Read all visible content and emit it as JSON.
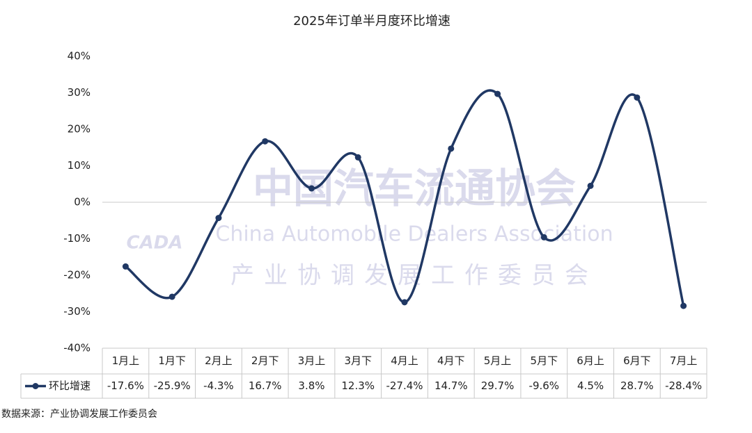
{
  "chart_data": {
    "type": "line",
    "title": "2025年订单半月度环比增速",
    "categories": [
      "1月上",
      "1月下",
      "2月上",
      "2月下",
      "3月上",
      "3月下",
      "4月上",
      "4月下",
      "5月上",
      "5月下",
      "6月上",
      "6月下",
      "7月上"
    ],
    "series": [
      {
        "name": "环比增速",
        "color": "#203864",
        "values": [
          -17.6,
          -25.9,
          -4.3,
          16.7,
          3.8,
          12.3,
          -27.4,
          14.7,
          29.7,
          -9.6,
          4.5,
          28.7,
          -28.4
        ],
        "value_labels": [
          "-17.6%",
          "-25.9%",
          "-4.3%",
          "16.7%",
          "3.8%",
          "12.3%",
          "-27.4%",
          "14.7%",
          "29.7%",
          "-9.6%",
          "4.5%",
          "28.7%",
          "-28.4%"
        ]
      }
    ],
    "ylim": [
      -40,
      40
    ],
    "yticks": [
      {
        "value": 40,
        "label": "40%"
      },
      {
        "value": 30,
        "label": "30%"
      },
      {
        "value": 20,
        "label": "20%"
      },
      {
        "value": 10,
        "label": "10%"
      },
      {
        "value": 0,
        "label": "0%"
      },
      {
        "value": -10,
        "label": "-10%"
      },
      {
        "value": -20,
        "label": "-20%"
      },
      {
        "value": -30,
        "label": "-30%"
      },
      {
        "value": -40,
        "label": "-40%"
      }
    ],
    "smooth": true,
    "watermark": {
      "logo": "CADA",
      "name": "中国汽车流通协会",
      "english": "China Automobile Dealers Association",
      "committee": "产业协调发展工作委员会"
    },
    "source": "数据来源：产业协调发展工作委员会"
  }
}
